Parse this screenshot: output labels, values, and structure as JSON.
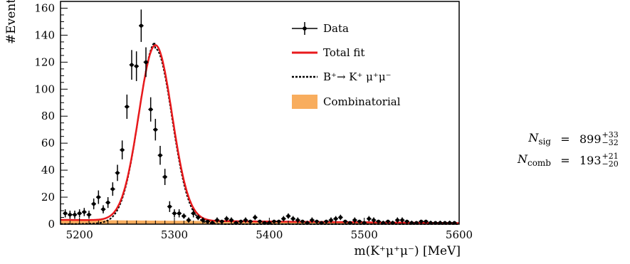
{
  "chart_data": {
    "type": "scatter",
    "xlabel": "m(K⁺μ⁺μ⁻) [MeV]",
    "ylabel": "#Events",
    "xlim": [
      5180,
      5600
    ],
    "ylim": [
      0,
      165
    ],
    "xticks": [
      5200,
      5300,
      5400,
      5500,
      5600
    ],
    "yticks": [
      0,
      20,
      40,
      60,
      80,
      100,
      120,
      140,
      160
    ],
    "grid": false,
    "legend_position": "top-right",
    "legend": [
      {
        "label": "Data",
        "style": "marker-errorbar",
        "color": "#000000"
      },
      {
        "label": "Total fit",
        "style": "line",
        "color": "#e8191c"
      },
      {
        "label": "B⁺→ K⁺ μ⁺μ⁻",
        "style": "dashed",
        "color": "#000000"
      },
      {
        "label": "Combinatorial",
        "style": "fill",
        "color": "#f8ad5e"
      }
    ],
    "series": [
      {
        "name": "Data",
        "x": [
          5185,
          5190,
          5195,
          5200,
          5205,
          5210,
          5215,
          5220,
          5225,
          5230,
          5235,
          5240,
          5245,
          5250,
          5255,
          5260,
          5265,
          5270,
          5275,
          5280,
          5285,
          5290,
          5295,
          5300,
          5305,
          5310,
          5315,
          5320,
          5325,
          5330,
          5335,
          5340,
          5345,
          5350,
          5355,
          5360,
          5365,
          5370,
          5375,
          5380,
          5385,
          5390,
          5395,
          5400,
          5405,
          5410,
          5415,
          5420,
          5425,
          5430,
          5435,
          5440,
          5445,
          5450,
          5455,
          5460,
          5465,
          5470,
          5475,
          5480,
          5485,
          5490,
          5495,
          5500,
          5505,
          5510,
          5515,
          5520,
          5525,
          5530,
          5535,
          5540,
          5545,
          5550,
          5555,
          5560,
          5565,
          5570,
          5575,
          5580,
          5585,
          5590,
          5595
        ],
        "y": [
          8,
          7,
          7,
          8,
          9,
          7,
          15,
          20,
          11,
          16,
          26,
          38,
          55,
          87,
          118,
          117,
          147,
          120,
          85,
          70,
          51,
          35,
          13,
          8,
          8,
          6,
          3,
          8,
          5,
          3,
          2,
          1,
          3,
          2,
          4,
          3,
          1,
          2,
          3,
          2,
          5,
          2,
          1,
          1,
          2,
          2,
          4,
          6,
          4,
          3,
          2,
          1,
          3,
          2,
          1,
          2,
          3,
          4,
          5,
          2,
          1,
          3,
          2,
          1,
          4,
          3,
          2,
          1,
          2,
          1,
          3,
          3,
          2,
          1,
          1,
          2,
          2,
          1,
          1,
          1,
          1,
          1,
          1
        ],
        "yerr": [
          3,
          3,
          3,
          3,
          3,
          3,
          4,
          5,
          3,
          4,
          5,
          6,
          7,
          9,
          11,
          11,
          12,
          11,
          9,
          8,
          7,
          6,
          4,
          3,
          3,
          2,
          2,
          3,
          2,
          2,
          1,
          1,
          2,
          1,
          2,
          2,
          1,
          1,
          2,
          1,
          2,
          1,
          1,
          1,
          1,
          1,
          2,
          2,
          2,
          2,
          1,
          1,
          2,
          1,
          1,
          1,
          2,
          2,
          2,
          1,
          1,
          2,
          1,
          1,
          2,
          2,
          1,
          1,
          1,
          1,
          2,
          2,
          1,
          1,
          1,
          1,
          1,
          1,
          1,
          1,
          1,
          1,
          1
        ],
        "xerr": 2.5
      },
      {
        "name": "Total fit",
        "model": "gaussian_plus_linear",
        "mean": 5280,
        "sigma": 17.5,
        "amplitude": 130,
        "background_start": 3.2,
        "background_end": 0.8
      },
      {
        "name": "B⁺→ K⁺ μ⁺μ⁻",
        "model": "gaussian_with_lowmass_tail",
        "mean": 5280,
        "sigma": 17.5,
        "amplitude": 130,
        "tail_level": 5,
        "tail_decay": 25
      },
      {
        "name": "Combinatorial",
        "model": "linear",
        "start": 3.2,
        "end": 0.8
      }
    ]
  },
  "fit_results": [
    {
      "name": "N",
      "sub": "sig",
      "eq": "=",
      "value": "899",
      "sup": "+33",
      "inf": "−32"
    },
    {
      "name": "N",
      "sub": "comb",
      "eq": "=",
      "value": "193",
      "sup": "+21",
      "inf": "−20"
    }
  ]
}
